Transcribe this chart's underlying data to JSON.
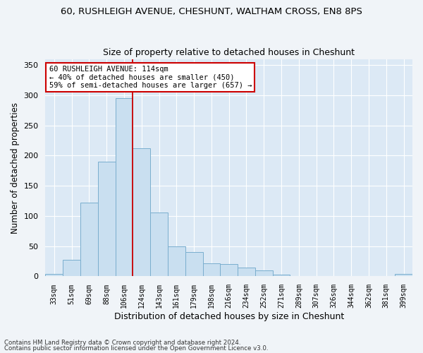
{
  "title1": "60, RUSHLEIGH AVENUE, CHESHUNT, WALTHAM CROSS, EN8 8PS",
  "title2": "Size of property relative to detached houses in Cheshunt",
  "xlabel": "Distribution of detached houses by size in Cheshunt",
  "ylabel": "Number of detached properties",
  "categories": [
    "33sqm",
    "51sqm",
    "69sqm",
    "88sqm",
    "106sqm",
    "124sqm",
    "143sqm",
    "161sqm",
    "179sqm",
    "198sqm",
    "216sqm",
    "234sqm",
    "252sqm",
    "271sqm",
    "289sqm",
    "307sqm",
    "326sqm",
    "344sqm",
    "362sqm",
    "381sqm",
    "399sqm"
  ],
  "bar_values": [
    4,
    28,
    122,
    190,
    295,
    212,
    106,
    50,
    40,
    22,
    20,
    15,
    10,
    3,
    1,
    1,
    0,
    0,
    0,
    0,
    4
  ],
  "bar_color": "#c9dff0",
  "bar_edge_color": "#7aaece",
  "vline_color": "#cc0000",
  "vline_x": 4.5,
  "annotation_text": "60 RUSHLEIGH AVENUE: 114sqm\n← 40% of detached houses are smaller (450)\n59% of semi-detached houses are larger (657) →",
  "annotation_box_color": "#ffffff",
  "annotation_box_edge": "#cc0000",
  "footnote1": "Contains HM Land Registry data © Crown copyright and database right 2024.",
  "footnote2": "Contains public sector information licensed under the Open Government Licence v3.0.",
  "ylim": [
    0,
    360
  ],
  "yticks": [
    0,
    50,
    100,
    150,
    200,
    250,
    300,
    350
  ],
  "background_color": "#dce9f5",
  "grid_color": "#ffffff",
  "title1_fontsize": 9.5,
  "title2_fontsize": 9,
  "xlabel_fontsize": 9,
  "ylabel_fontsize": 8.5
}
